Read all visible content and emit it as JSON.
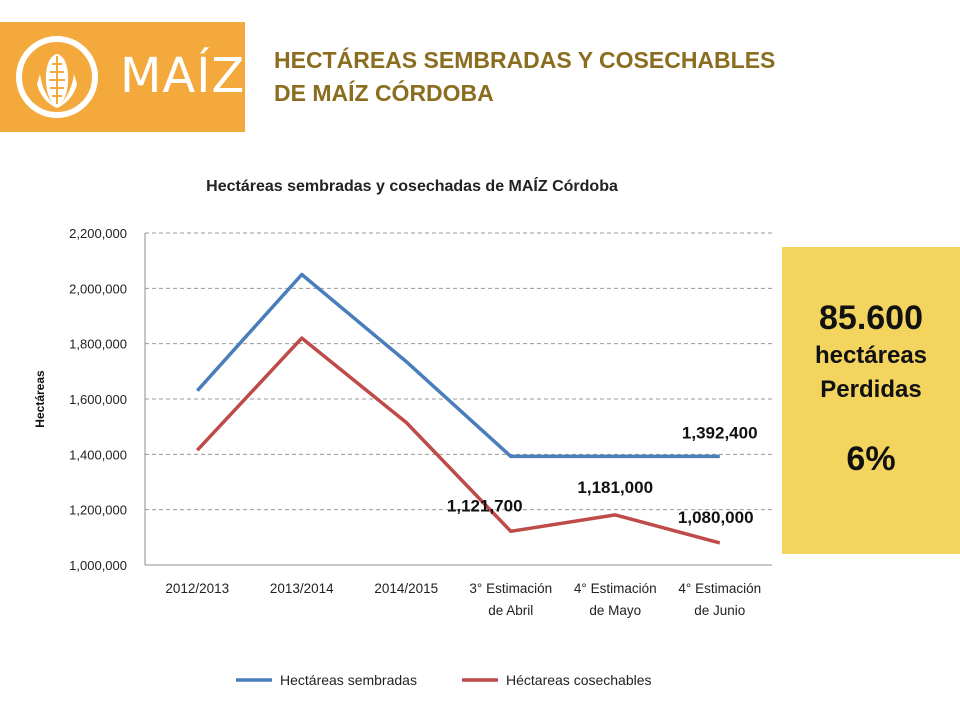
{
  "logo": {
    "text": "MAÍZ",
    "icon": "corn-icon"
  },
  "page_title": {
    "line1": "HECTÁREAS SEMBRADAS Y COSECHABLES",
    "line2": "DE MAÍZ CÓRDOBA"
  },
  "callout": {
    "value": "85.600",
    "line1": "hectáreas",
    "line2": "Perdidas",
    "percent": "6%"
  },
  "colors": {
    "accent": "#f4a93c",
    "title": "#8a6d1e",
    "callout_bg": "#f2d45e",
    "sembradas": "#4a7ebb",
    "cosechables": "#be4b48"
  },
  "chart_data": {
    "type": "line",
    "title": "Hectáreas sembradas y cosechadas de MAÍZ Córdoba",
    "ylabel": "Hectáreas",
    "xlabel": "",
    "ylim": [
      1000000,
      2200000
    ],
    "yticks": [
      1000000,
      1200000,
      1400000,
      1600000,
      1800000,
      2000000,
      2200000
    ],
    "ytick_labels": [
      "1,000,000",
      "1,200,000",
      "1,400,000",
      "1,600,000",
      "1,800,000",
      "2,000,000",
      "2,200,000"
    ],
    "grid": true,
    "legend": "bottom",
    "categories": [
      [
        "2012/2013"
      ],
      [
        "2013/2014"
      ],
      [
        "2014/2015"
      ],
      [
        "3° Estimación",
        "de Abril"
      ],
      [
        "4° Estimación",
        "de Mayo"
      ],
      [
        "4° Estimación",
        "de Junio"
      ]
    ],
    "series": [
      {
        "name": "Hectáreas sembradas",
        "color": "#4a7ebb",
        "values": [
          1630000,
          2050000,
          1735000,
          1392400,
          1392400,
          1392400
        ]
      },
      {
        "name": "Héctareas cosechables",
        "color": "#be4b48",
        "values": [
          1415000,
          1820000,
          1515000,
          1121700,
          1181000,
          1080000
        ]
      }
    ],
    "annotations": [
      {
        "text": "1,392,400",
        "series": 0,
        "index": 5
      },
      {
        "text": "1,121,700",
        "series": 1,
        "index": 3
      },
      {
        "text": "1,181,000",
        "series": 1,
        "index": 4
      },
      {
        "text": "1,080,000",
        "series": 1,
        "index": 5
      }
    ]
  }
}
